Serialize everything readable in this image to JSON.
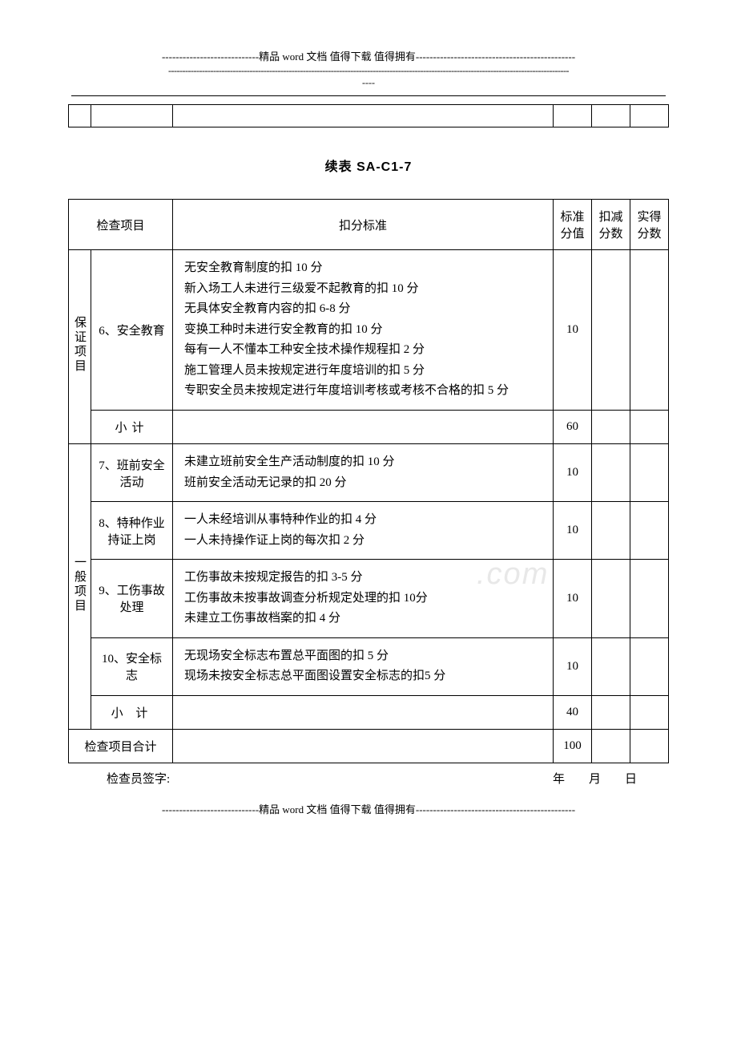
{
  "header": {
    "decoration1": "----------------------------精品 word 文档  值得下载  值得拥有----------------------------------------------",
    "decoration2": "-----------------------------------------------------------------------------------------------------------------------------------------------",
    "decoration3": "----"
  },
  "emptyTableWidths": [
    "28px",
    "102px",
    "auto",
    "48px",
    "48px",
    "48px"
  ],
  "tableTitle": "续表 SA-C1-7",
  "headers": {
    "checkItem": "检查项目",
    "criteria": "扣分标准",
    "standardScore": "标准\n分值",
    "deductScore": "扣减\n分数",
    "actualScore": "实得\n分数"
  },
  "categories": {
    "guarantee": "保证项目",
    "general": "一般项目"
  },
  "rows": [
    {
      "item": "6、安全教育",
      "criteria": "无安全教育制度的扣 10 分\n新入场工人未进行三级爱不起教育的扣 10 分\n无具体安全教育内容的扣 6-8 分\n变换工种时未进行安全教育的扣 10 分\n每有一人不懂本工种安全技术操作规程扣 2 分\n施工管理人员未按规定进行年度培训的扣 5 分\n专职安全员未按规定进行年度培训考核或考核不合格的扣 5 分",
      "score": "10"
    },
    {
      "item": "小计",
      "criteria": "",
      "score": "60",
      "isSubtotal": true
    },
    {
      "item": "7、班前安全\n活动",
      "criteria": "未建立班前安全生产活动制度的扣 10 分\n班前安全活动无记录的扣 20 分",
      "score": "10"
    },
    {
      "item": "8、特种作业\n持证上岗",
      "criteria": "一人未经培训从事特种作业的扣 4 分\n一人未持操作证上岗的每次扣 2 分",
      "score": "10"
    },
    {
      "item": "9、工伤事故\n处理",
      "criteria": "工伤事故未按规定报告的扣 3-5 分\n工伤事故未按事故调查分析规定处理的扣 10分\n未建立工伤事故档案的扣 4 分",
      "score": "10"
    },
    {
      "item": "10、安全标志",
      "criteria": "无现场安全标志布置总平面图的扣 5 分\n现场未按安全标志总平面图设置安全标志的扣5 分",
      "score": "10"
    },
    {
      "item": "小 计",
      "criteria": "",
      "score": "40",
      "isSubtotal": true
    }
  ],
  "totalRow": {
    "label": "检查项目合计",
    "score": "100"
  },
  "signature": {
    "label": "检查员签字:",
    "dateLabel": "年　　月　　日"
  },
  "footer": {
    "decoration": "----------------------------精品 word 文档  值得下载  值得拥有----------------------------------------------"
  },
  "watermark": ".com"
}
